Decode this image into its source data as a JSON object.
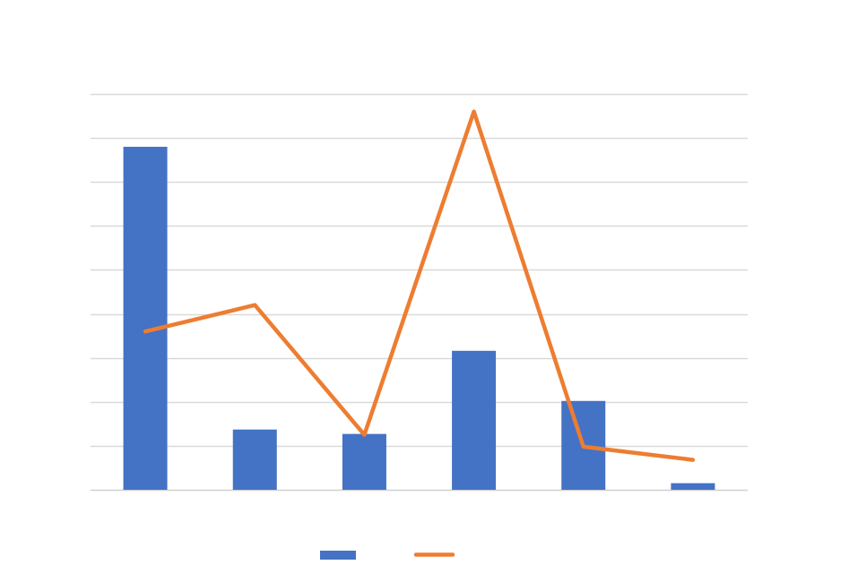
{
  "chart_data": {
    "type": "bar",
    "categories": [
      "",
      "",
      "",
      "",
      "",
      ""
    ],
    "ylim": [
      0,
      9
    ],
    "grid": true,
    "legend_position": "bottom",
    "series": [
      {
        "type": "bar",
        "color": "#4472C4",
        "values": [
          7.8,
          1.37,
          1.27,
          3.16,
          2.02,
          0.15
        ]
      },
      {
        "type": "line",
        "color": "#ED7D31",
        "values": [
          3.6,
          4.2,
          1.25,
          8.6,
          0.98,
          0.68
        ]
      }
    ]
  }
}
